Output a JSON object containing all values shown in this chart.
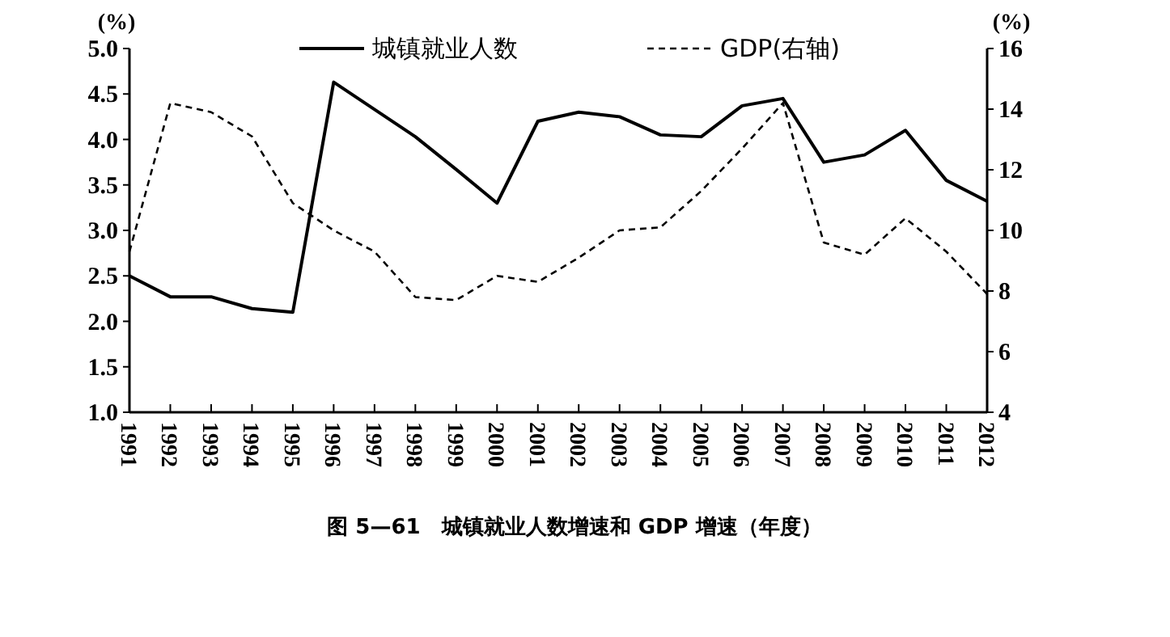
{
  "chart_data": {
    "type": "line",
    "title": "图 5—61　城镇就业人数增速和 GDP 增速（年度）",
    "ylabel": "(%)",
    "y2label": "(%)",
    "categories": [
      "1991",
      "1992",
      "1993",
      "1994",
      "1995",
      "1996",
      "1997",
      "1998",
      "1999",
      "2000",
      "2001",
      "2002",
      "2003",
      "2004",
      "2005",
      "2006",
      "2007",
      "2008",
      "2009",
      "2010",
      "2011",
      "2012"
    ],
    "series": [
      {
        "name": "城镇就业人数",
        "color": "#000000",
        "line_style": "solid",
        "values": [
          2.5,
          2.27,
          2.27,
          2.14,
          2.1,
          4.63,
          4.33,
          4.03,
          3.67,
          3.3,
          4.2,
          4.3,
          4.25,
          4.05,
          4.03,
          4.37,
          4.45,
          3.75,
          3.83,
          4.1,
          3.55,
          3.32
        ]
      },
      {
        "name": "GDP(右轴)",
        "color": "#000000",
        "line_style": "dashed",
        "axis": "y2",
        "values": [
          9.3,
          14.2,
          13.9,
          13.1,
          10.9,
          10.0,
          9.3,
          7.8,
          7.7,
          8.5,
          8.3,
          9.1,
          10.0,
          10.1,
          11.3,
          12.7,
          14.2,
          9.6,
          9.2,
          10.4,
          9.3,
          7.9
        ]
      }
    ],
    "ylim": [
      1.0,
      5.0
    ],
    "yticks": [
      {
        "value": 1,
        "label": "1.0"
      },
      {
        "value": 1.5,
        "label": "1.5"
      },
      {
        "value": 2,
        "label": "2.0"
      },
      {
        "value": 2.5,
        "label": "2.5"
      },
      {
        "value": 3,
        "label": "3.0"
      },
      {
        "value": 3.5,
        "label": "3.5"
      },
      {
        "value": 4,
        "label": "4.0"
      },
      {
        "value": 4.5,
        "label": "4.5"
      },
      {
        "value": 5,
        "label": "5.0"
      }
    ],
    "y2lim": [
      4,
      16
    ],
    "y2ticks": [
      4,
      6,
      8,
      10,
      12,
      14,
      16
    ],
    "legend": "top",
    "grid": false
  }
}
